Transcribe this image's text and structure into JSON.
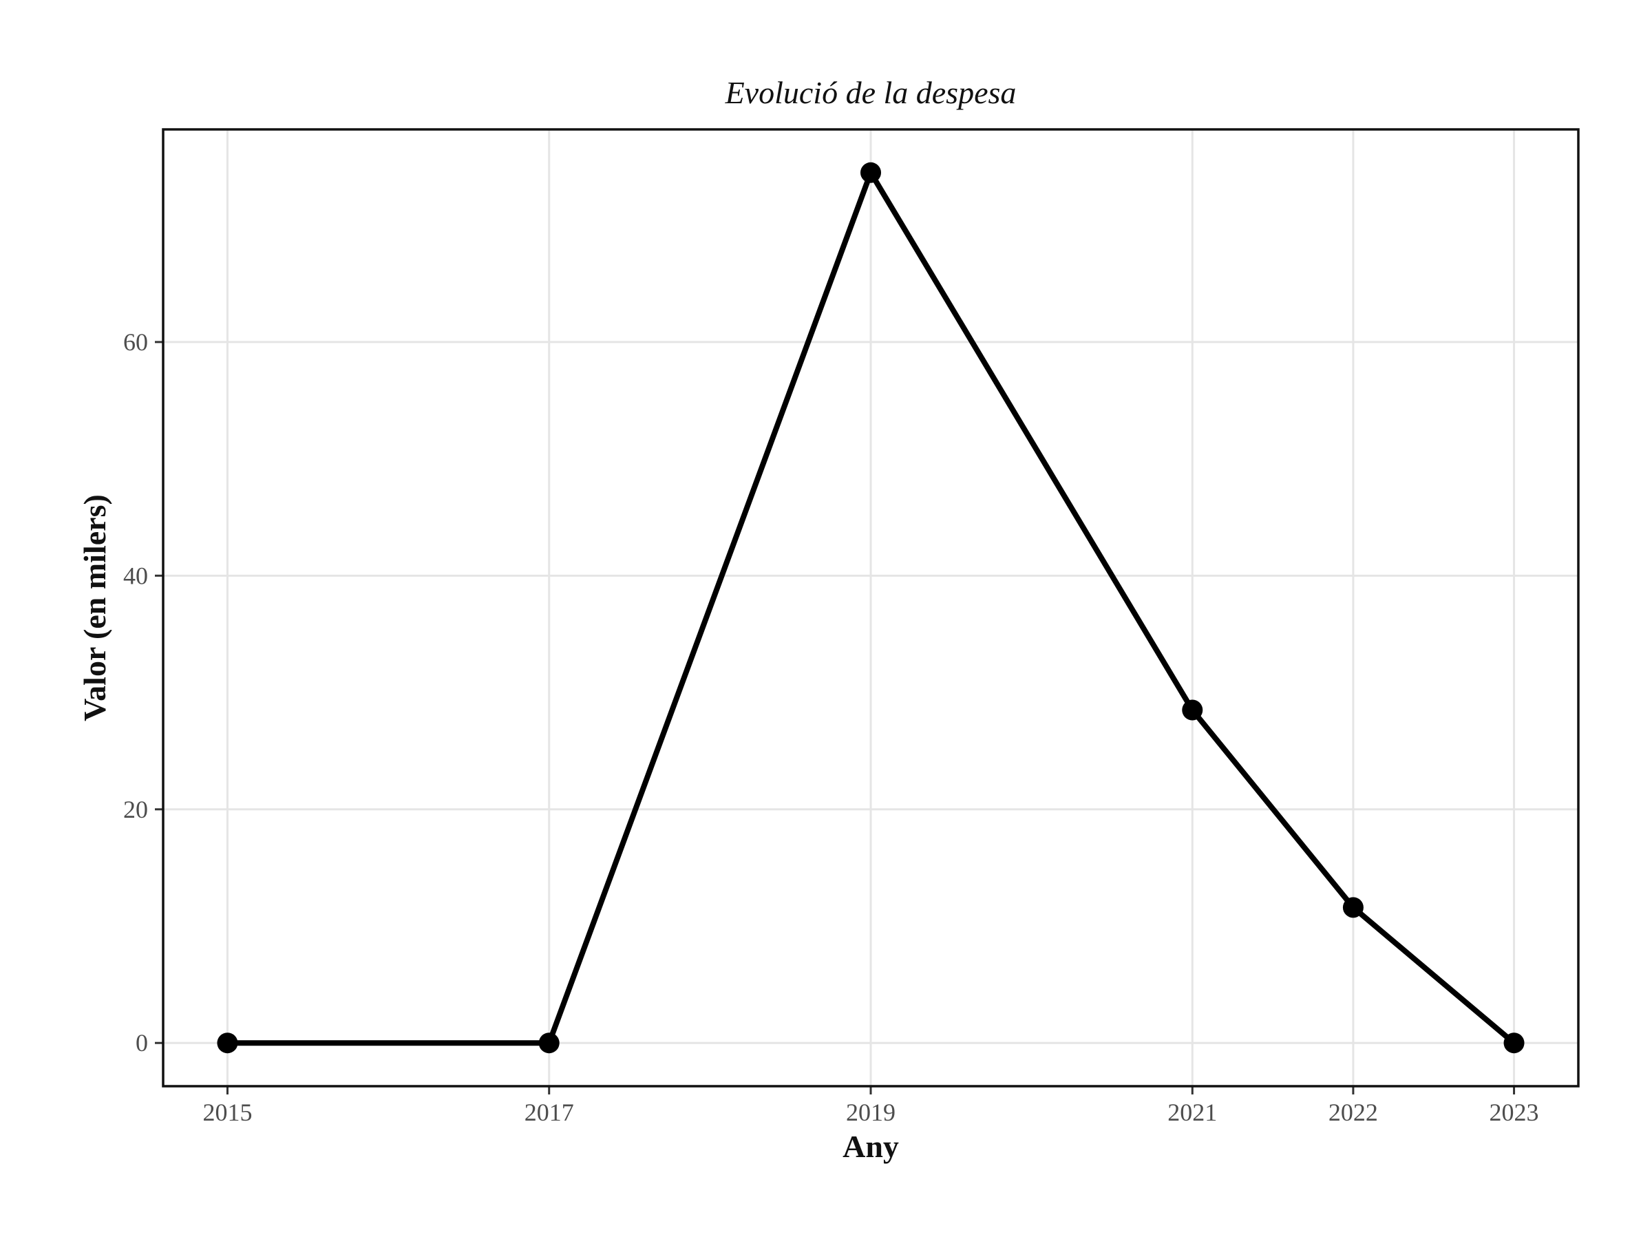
{
  "chart_data": {
    "type": "line",
    "title": "Evolució de la despesa",
    "xlabel": "Any",
    "ylabel": "Valor (en milers)",
    "x": [
      2015,
      2017,
      2019,
      2021,
      2022,
      2023
    ],
    "x_tick_labels": [
      "2015",
      "2017",
      "2019",
      "2021",
      "2022",
      "2023"
    ],
    "y": [
      0,
      0,
      74.5,
      28.5,
      11.6,
      0
    ],
    "y_ticks": [
      0,
      20,
      40,
      60
    ],
    "y_tick_labels": [
      "0",
      "20",
      "40",
      "60"
    ],
    "xlim": [
      2014.6,
      2023.4
    ],
    "ylim": [
      -3.7,
      78.2
    ],
    "grid": true,
    "legend": "none",
    "colors": {
      "line": "#000000",
      "grid": "#e5e5e5",
      "panel_border": "#111111"
    }
  }
}
